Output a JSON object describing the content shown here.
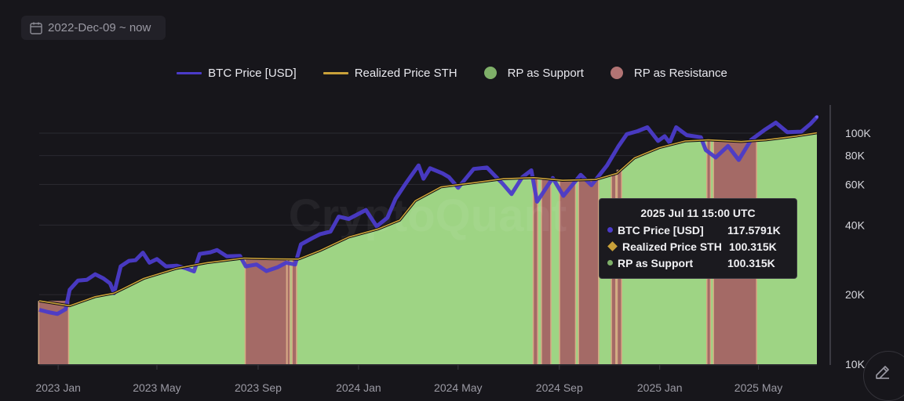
{
  "date_range": {
    "label": "2022-Dec-09 ~ now",
    "icon": "calendar-icon"
  },
  "legend": [
    {
      "label": "BTC Price [USD]",
      "kind": "line",
      "color": "#4b3bc9"
    },
    {
      "label": "Realized Price STH",
      "kind": "line",
      "color": "#c9a13a"
    },
    {
      "label": "RP as Support",
      "kind": "dot",
      "color": "#7fb069"
    },
    {
      "label": "RP as Resistance",
      "kind": "dot",
      "color": "#b27474"
    }
  ],
  "watermark": "CryptoQuant",
  "tooltip": {
    "title": "2025 Jul 11 15:00 UTC",
    "rows": [
      {
        "name": "BTC Price [USD]",
        "value": "117.5791K",
        "marker": "dot",
        "color": "#4b3bc9"
      },
      {
        "name": "Realized Price STH",
        "value": "100.315K",
        "marker": "diamond",
        "color": "#c9a13a"
      },
      {
        "name": "RP as Support",
        "value": "100.315K",
        "marker": "dot",
        "color": "#7fb069"
      }
    ]
  },
  "edit_button": {
    "icon": "pencil-icon"
  },
  "chart_data": {
    "type": "line",
    "title": "",
    "xlabel": "",
    "ylabel": "",
    "y_scale": "log",
    "ylim": [
      10000,
      125000
    ],
    "xlim": [
      "2022-12-09",
      "2025-07-11"
    ],
    "grid": true,
    "legend_position": "top-center",
    "y_ticks": [
      {
        "value": 10000,
        "label": "10K"
      },
      {
        "value": 20000,
        "label": "20K"
      },
      {
        "value": 40000,
        "label": "40K"
      },
      {
        "value": 60000,
        "label": "60K"
      },
      {
        "value": 80000,
        "label": "80K"
      },
      {
        "value": 100000,
        "label": "100K"
      }
    ],
    "x_ticks": [
      {
        "date": "2023-01-01",
        "label": "2023 Jan"
      },
      {
        "date": "2023-05-01",
        "label": "2023 May"
      },
      {
        "date": "2023-09-01",
        "label": "2023 Sep"
      },
      {
        "date": "2024-01-01",
        "label": "2024 Jan"
      },
      {
        "date": "2024-05-01",
        "label": "2024 May"
      },
      {
        "date": "2024-09-01",
        "label": "2024 Sep"
      },
      {
        "date": "2025-01-01",
        "label": "2025 Jan"
      },
      {
        "date": "2025-05-01",
        "label": "2025 May"
      }
    ],
    "series": [
      {
        "name": "BTC Price [USD]",
        "color": "#4b3bc9",
        "points": [
          [
            "2022-12-09",
            17200
          ],
          [
            "2022-12-20",
            16800
          ],
          [
            "2022-12-31",
            16500
          ],
          [
            "2023-01-10",
            17300
          ],
          [
            "2023-01-15",
            21000
          ],
          [
            "2023-01-25",
            23000
          ],
          [
            "2023-02-05",
            23200
          ],
          [
            "2023-02-15",
            24500
          ],
          [
            "2023-02-25",
            23500
          ],
          [
            "2023-03-05",
            22400
          ],
          [
            "2023-03-10",
            20300
          ],
          [
            "2023-03-18",
            26500
          ],
          [
            "2023-03-28",
            28000
          ],
          [
            "2023-04-05",
            28200
          ],
          [
            "2023-04-14",
            30400
          ],
          [
            "2023-04-22",
            27500
          ],
          [
            "2023-05-01",
            28500
          ],
          [
            "2023-05-12",
            26500
          ],
          [
            "2023-05-25",
            26700
          ],
          [
            "2023-06-05",
            26000
          ],
          [
            "2023-06-15",
            25200
          ],
          [
            "2023-06-22",
            30000
          ],
          [
            "2023-07-05",
            30500
          ],
          [
            "2023-07-13",
            31200
          ],
          [
            "2023-07-25",
            29300
          ],
          [
            "2023-08-10",
            29400
          ],
          [
            "2023-08-17",
            26500
          ],
          [
            "2023-08-30",
            27000
          ],
          [
            "2023-09-11",
            25300
          ],
          [
            "2023-09-25",
            26300
          ],
          [
            "2023-10-05",
            27500
          ],
          [
            "2023-10-16",
            27000
          ],
          [
            "2023-10-23",
            33000
          ],
          [
            "2023-11-05",
            35000
          ],
          [
            "2023-11-15",
            36500
          ],
          [
            "2023-11-28",
            37500
          ],
          [
            "2023-12-08",
            43500
          ],
          [
            "2023-12-20",
            42500
          ],
          [
            "2024-01-10",
            46500
          ],
          [
            "2024-01-23",
            39500
          ],
          [
            "2024-02-05",
            43000
          ],
          [
            "2024-02-15",
            52000
          ],
          [
            "2024-02-28",
            61000
          ],
          [
            "2024-03-14",
            72500
          ],
          [
            "2024-03-20",
            63500
          ],
          [
            "2024-03-28",
            70500
          ],
          [
            "2024-04-12",
            67000
          ],
          [
            "2024-04-20",
            64500
          ],
          [
            "2024-05-01",
            58000
          ],
          [
            "2024-05-20",
            70000
          ],
          [
            "2024-06-05",
            71000
          ],
          [
            "2024-06-24",
            60500
          ],
          [
            "2024-07-05",
            54500
          ],
          [
            "2024-07-18",
            64500
          ],
          [
            "2024-07-29",
            69000
          ],
          [
            "2024-08-05",
            50500
          ],
          [
            "2024-08-24",
            64000
          ],
          [
            "2024-09-06",
            53500
          ],
          [
            "2024-09-27",
            66000
          ],
          [
            "2024-10-10",
            59500
          ],
          [
            "2024-10-29",
            72500
          ],
          [
            "2024-11-12",
            88000
          ],
          [
            "2024-11-22",
            99000
          ],
          [
            "2024-12-05",
            102000
          ],
          [
            "2024-12-17",
            106000
          ],
          [
            "2024-12-30",
            92500
          ],
          [
            "2025-01-07",
            97000
          ],
          [
            "2025-01-13",
            91000
          ],
          [
            "2025-01-21",
            106000
          ],
          [
            "2025-02-03",
            98000
          ],
          [
            "2025-02-20",
            96000
          ],
          [
            "2025-02-26",
            84500
          ],
          [
            "2025-03-10",
            78500
          ],
          [
            "2025-03-25",
            88000
          ],
          [
            "2025-04-07",
            76500
          ],
          [
            "2025-04-22",
            93500
          ],
          [
            "2025-05-08",
            103000
          ],
          [
            "2025-05-22",
            111000
          ],
          [
            "2025-06-05",
            101000
          ],
          [
            "2025-06-22",
            101500
          ],
          [
            "2025-07-03",
            109500
          ],
          [
            "2025-07-11",
            117579
          ]
        ]
      },
      {
        "name": "Realized Price STH",
        "color": "#c9a13a",
        "points": [
          [
            "2022-12-09",
            18800
          ],
          [
            "2023-01-15",
            17900
          ],
          [
            "2023-02-15",
            19600
          ],
          [
            "2023-03-10",
            20300
          ],
          [
            "2023-04-15",
            23500
          ],
          [
            "2023-05-25",
            26000
          ],
          [
            "2023-07-01",
            27500
          ],
          [
            "2023-08-15",
            28800
          ],
          [
            "2023-09-15",
            28600
          ],
          [
            "2023-10-20",
            28500
          ],
          [
            "2023-11-15",
            31000
          ],
          [
            "2023-12-20",
            35500
          ],
          [
            "2024-01-25",
            38500
          ],
          [
            "2024-02-20",
            42000
          ],
          [
            "2024-03-10",
            51000
          ],
          [
            "2024-04-10",
            58500
          ],
          [
            "2024-05-20",
            61000
          ],
          [
            "2024-06-25",
            63500
          ],
          [
            "2024-08-01",
            64200
          ],
          [
            "2024-09-05",
            62500
          ],
          [
            "2024-10-15",
            63000
          ],
          [
            "2024-11-10",
            67000
          ],
          [
            "2024-12-01",
            78000
          ],
          [
            "2024-12-31",
            86500
          ],
          [
            "2025-02-01",
            92500
          ],
          [
            "2025-03-01",
            93500
          ],
          [
            "2025-04-10",
            92000
          ],
          [
            "2025-05-10",
            93500
          ],
          [
            "2025-06-15",
            97000
          ],
          [
            "2025-07-11",
            100315
          ]
        ]
      }
    ],
    "zones": {
      "support_color": "#9ed484",
      "resistance_color": "#a46a66",
      "resistance_periods": [
        [
          "2022-12-09",
          "2023-01-13"
        ],
        [
          "2023-08-17",
          "2023-10-05"
        ],
        [
          "2023-10-07",
          "2023-10-09"
        ],
        [
          "2023-10-13",
          "2023-10-17"
        ],
        [
          "2024-08-01",
          "2024-08-05"
        ],
        [
          "2024-08-11",
          "2024-08-21"
        ],
        [
          "2024-09-02",
          "2024-09-20"
        ],
        [
          "2024-09-25",
          "2024-10-18"
        ],
        [
          "2024-11-04",
          "2024-11-08"
        ],
        [
          "2024-11-11",
          "2024-11-15"
        ],
        [
          "2025-02-28",
          "2025-03-03"
        ],
        [
          "2025-03-08",
          "2025-04-28"
        ]
      ]
    }
  }
}
